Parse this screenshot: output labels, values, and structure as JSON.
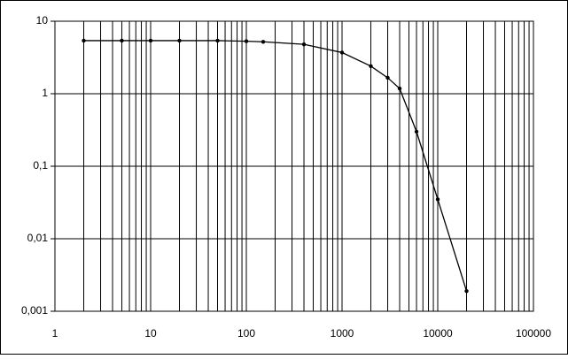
{
  "chart_data": {
    "type": "line",
    "x": [
      2,
      5,
      10,
      20,
      50,
      100,
      150,
      400,
      1000,
      2000,
      3000,
      4000,
      6000,
      10000,
      20000
    ],
    "series": [
      {
        "color": "#000000",
        "values": [
          5.4,
          5.4,
          5.4,
          5.4,
          5.4,
          5.3,
          5.2,
          4.8,
          3.7,
          2.4,
          1.66,
          1.18,
          0.3,
          0.035,
          0.0019
        ]
      }
    ],
    "xlim": [
      1,
      100000
    ],
    "xticks": [
      1,
      10,
      100,
      1000,
      10000,
      100000
    ],
    "ylim": [
      0.001,
      10
    ],
    "yticks": [
      {
        "value": 0.001,
        "label": "0,001"
      },
      {
        "value": 0.01,
        "label": "0,01"
      },
      {
        "value": 0.1,
        "label": "0,1"
      },
      {
        "value": 1,
        "label": "1"
      },
      10
    ],
    "xlog": true,
    "ylog": true,
    "grid": true
  }
}
